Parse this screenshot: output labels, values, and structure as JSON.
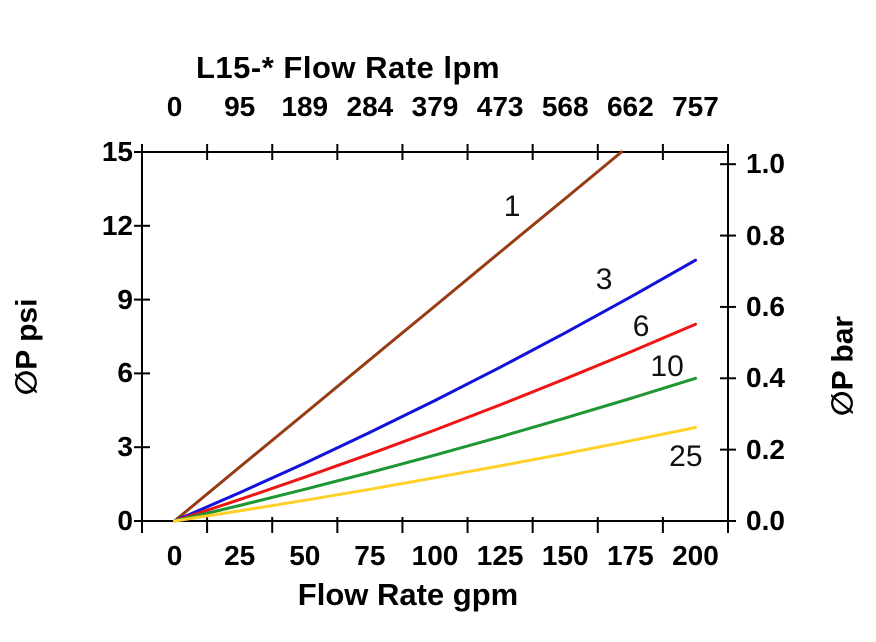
{
  "page": {
    "background": "#ffffff",
    "frame_color": "#000000"
  },
  "chart_data": {
    "type": "line",
    "title": "L15-* Flow Rate lpm",
    "top_axis": {
      "unit": "lpm",
      "tick_labels": [
        "0",
        "95",
        "189",
        "284",
        "379",
        "473",
        "568",
        "662",
        "757"
      ]
    },
    "bottom_axis": {
      "label": "Flow Rate gpm",
      "unit": "gpm",
      "range": [
        0,
        200
      ],
      "tick_labels": [
        "0",
        "25",
        "50",
        "75",
        "100",
        "125",
        "150",
        "175",
        "200"
      ]
    },
    "left_axis": {
      "label": "∅P psi",
      "unit": "psi",
      "range": [
        0,
        15
      ],
      "tick_labels": [
        "0",
        "3",
        "6",
        "9",
        "12",
        "15"
      ]
    },
    "right_axis": {
      "label": "∅P bar",
      "unit": "bar",
      "range": [
        0.0,
        1.0
      ],
      "tick_labels": [
        "0.0",
        "0.2",
        "0.4",
        "0.6",
        "0.8",
        "1.0"
      ]
    },
    "grid": false,
    "legend": "inline curve labels",
    "series": [
      {
        "label": "1",
        "color": "#963B12",
        "points": [
          [
            0,
            0
          ],
          [
            25,
            2.19
          ],
          [
            50,
            4.37
          ],
          [
            75,
            6.56
          ],
          [
            100,
            8.74
          ],
          [
            125,
            10.93
          ],
          [
            150,
            13.11
          ],
          [
            171.6,
            15
          ]
        ],
        "label_at": [
          129.6,
          12.76
        ]
      },
      {
        "label": "3",
        "color": "#1212DC",
        "points": [
          [
            0,
            0
          ],
          [
            25,
            1.15
          ],
          [
            50,
            2.35
          ],
          [
            75,
            3.6
          ],
          [
            100,
            4.9
          ],
          [
            125,
            6.25
          ],
          [
            150,
            7.65
          ],
          [
            175,
            9.1
          ],
          [
            200,
            10.6
          ]
        ],
        "label_at": [
          164.9,
          9.8
        ]
      },
      {
        "label": "6",
        "color": "#EE1515",
        "points": [
          [
            0,
            0
          ],
          [
            25,
            0.87
          ],
          [
            50,
            1.78
          ],
          [
            75,
            2.72
          ],
          [
            100,
            3.7
          ],
          [
            125,
            4.72
          ],
          [
            150,
            5.78
          ],
          [
            175,
            6.87
          ],
          [
            200,
            8.0
          ]
        ],
        "label_at": [
          179.1,
          7.89
        ]
      },
      {
        "label": "10",
        "color": "#1E9632",
        "points": [
          [
            0,
            0
          ],
          [
            25,
            0.63
          ],
          [
            50,
            1.29
          ],
          [
            75,
            1.97
          ],
          [
            100,
            2.68
          ],
          [
            125,
            3.42
          ],
          [
            150,
            4.19
          ],
          [
            175,
            4.98
          ],
          [
            200,
            5.8
          ]
        ],
        "label_at": [
          189.1,
          6.26
        ]
      },
      {
        "label": "25",
        "color": "#FFD128",
        "points": [
          [
            0,
            0
          ],
          [
            25,
            0.41
          ],
          [
            50,
            0.84
          ],
          [
            75,
            1.29
          ],
          [
            100,
            1.76
          ],
          [
            125,
            2.24
          ],
          [
            150,
            2.74
          ],
          [
            175,
            3.26
          ],
          [
            200,
            3.8
          ]
        ],
        "label_at": [
          196.3,
          2.6
        ]
      }
    ]
  }
}
